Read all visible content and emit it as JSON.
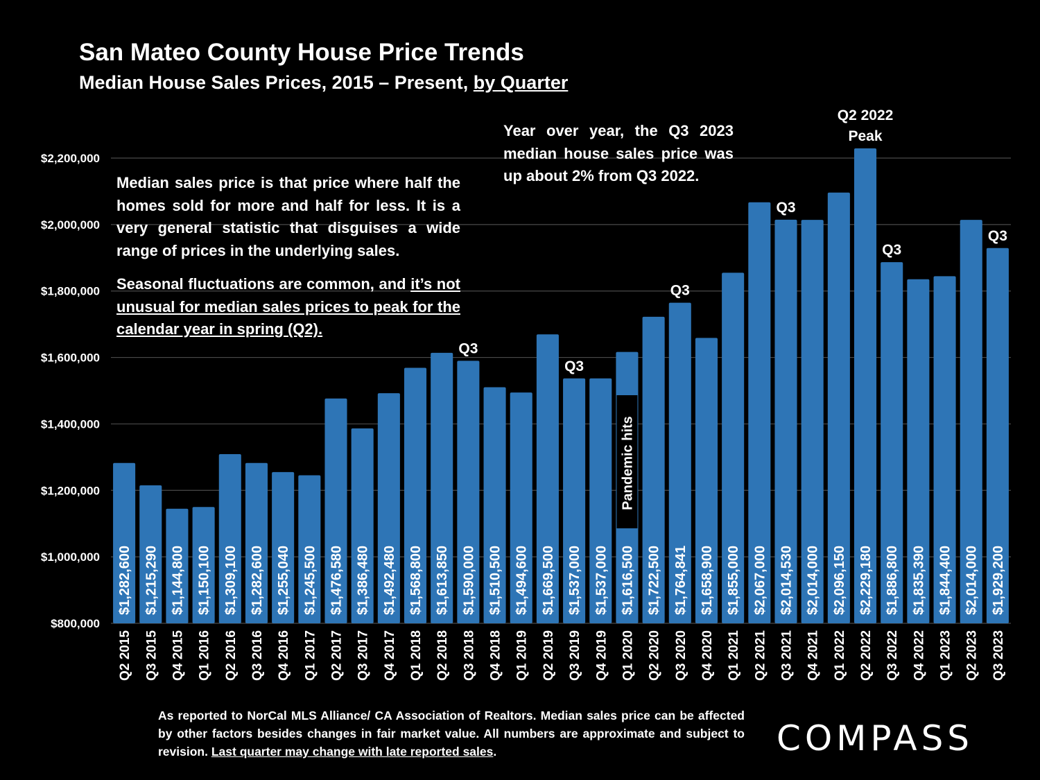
{
  "header": {
    "title": "San Mateo County House Price Trends",
    "subtitle_main": "Median House Sales Prices, 2015 – Present, ",
    "subtitle_underlined": "by Quarter"
  },
  "notes": {
    "definition": "Median sales price is that price where half the homes sold for more and half for less. It is a very general statistic that disguises a wide range of prices in the underlying sales.",
    "seasonal_plain": "Seasonal fluctuations are common, and ",
    "seasonal_underlined": "it’s not unusual for median sales prices to peak for the calendar year in spring (Q2).",
    "yoy": "Year over year, the Q3 2023 median house sales price was up about 2% from Q3 2022."
  },
  "footer": {
    "text": "As reported to NorCal MLS Alliance/ CA Association of Realtors. Median sales price can be affected by other factors besides changes in fair market value. All numbers are approximate and subject to revision. ",
    "underlined": "Last quarter may change with late reported sales",
    "end": "."
  },
  "logo": "COMPASS",
  "chart_data": {
    "type": "bar",
    "title": "San Mateo County House Price Trends",
    "ylim": [
      800000,
      2200000
    ],
    "yticks": [
      800000,
      1000000,
      1200000,
      1400000,
      1600000,
      1800000,
      2000000,
      2200000
    ],
    "ytick_labels": [
      "$800,000",
      "$1,000,000",
      "$1,200,000",
      "$1,400,000",
      "$1,600,000",
      "$1,800,000",
      "$2,000,000",
      "$2,200,000"
    ],
    "grid": true,
    "bar_color": "#2e75b6",
    "categories": [
      "Q2 2015",
      "Q3 2015",
      "Q4 2015",
      "Q1 2016",
      "Q2 2016",
      "Q3 2016",
      "Q4 2016",
      "Q1 2017",
      "Q2 2017",
      "Q3 2017",
      "Q4 2017",
      "Q1 2018",
      "Q2 2018",
      "Q3 2018",
      "Q4 2018",
      "Q1 2019",
      "Q2 2019",
      "Q3 2019",
      "Q4 2019",
      "Q1 2020",
      "Q2 2020",
      "Q3 2020",
      "Q4 2020",
      "Q1 2021",
      "Q2 2021",
      "Q3 2021",
      "Q4 2021",
      "Q1 2022",
      "Q2 2022",
      "Q3 2022",
      "Q4 2022",
      "Q1 2023",
      "Q2 2023",
      "Q3 2023"
    ],
    "values": [
      1282600,
      1215290,
      1144800,
      1150100,
      1309100,
      1282600,
      1255040,
      1245500,
      1476580,
      1386480,
      1492480,
      1568800,
      1613850,
      1590000,
      1510500,
      1494600,
      1669500,
      1537000,
      1537000,
      1616500,
      1722500,
      1764841,
      1658900,
      1855000,
      2067000,
      2014530,
      2014000,
      2096150,
      2229180,
      1886800,
      1835390,
      1844400,
      2014000,
      1929200
    ],
    "value_labels": [
      "$1,282,600",
      "$1,215,290",
      "$1,144,800",
      "$1,150,100",
      "$1,309,100",
      "$1,282,600",
      "$1,255,040",
      "$1,245,500",
      "$1,476,580",
      "$1,386,480",
      "$1,492,480",
      "$1,568,800",
      "$1,613,850",
      "$1,590,000",
      "$1,510,500",
      "$1,494,600",
      "$1,669,500",
      "$1,537,000",
      "$1,537,000",
      "$1,616,500",
      "$1,722,500",
      "$1,764,841",
      "$1,658,900",
      "$1,855,000",
      "$2,067,000",
      "$2,014,530",
      "$2,014,000",
      "$2,096,150",
      "$2,229,180",
      "$1,886,800",
      "$1,835,390",
      "$1,844,400",
      "$2,014,000",
      "$1,929,200"
    ],
    "annotations": [
      {
        "category": "Q3 2018",
        "lines": [
          "Q3"
        ]
      },
      {
        "category": "Q3 2019",
        "lines": [
          "Q3"
        ]
      },
      {
        "category": "Q3 2020",
        "lines": [
          "Q3"
        ]
      },
      {
        "category": "Q3 2021",
        "lines": [
          "Q3"
        ]
      },
      {
        "category": "Q2 2022",
        "lines": [
          "Q2 2022",
          "Peak"
        ]
      },
      {
        "category": "Q3 2022",
        "lines": [
          "Q3"
        ]
      },
      {
        "category": "Q3 2023",
        "lines": [
          "Q3"
        ]
      }
    ],
    "inbar_annotation": {
      "category": "Q1 2020",
      "text": "Pandemic hits"
    }
  }
}
